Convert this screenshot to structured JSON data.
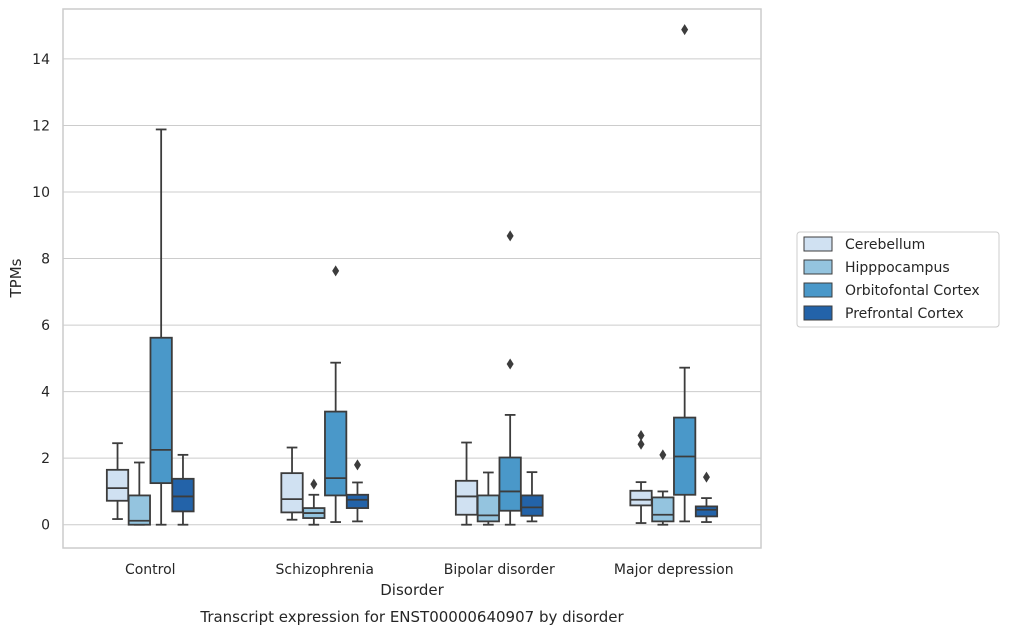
{
  "caption": "Transcript expression for ENST00000640907 by disorder",
  "chart_data": {
    "type": "boxplot",
    "title": "",
    "xlabel": "Disorder",
    "ylabel": "TPMs",
    "ylim": [
      -0.7,
      15.5
    ],
    "yticks": [
      0,
      2,
      4,
      6,
      8,
      10,
      12,
      14
    ],
    "grid": "horizontal",
    "legend_position": "right",
    "categories": [
      "Control",
      "Schizophrenia",
      "Bipolar disorder",
      "Major depression"
    ],
    "series": [
      {
        "name": "Cerebellum",
        "color": "#d0e1f2",
        "boxes": [
          {
            "whislo": 0.17,
            "q1": 0.72,
            "med": 1.1,
            "q3": 1.65,
            "whishi": 2.45,
            "fliers": []
          },
          {
            "whislo": 0.15,
            "q1": 0.37,
            "med": 0.77,
            "q3": 1.55,
            "whishi": 2.32,
            "fliers": []
          },
          {
            "whislo": 0.0,
            "q1": 0.3,
            "med": 0.85,
            "q3": 1.32,
            "whishi": 2.47,
            "fliers": []
          },
          {
            "whislo": 0.05,
            "q1": 0.58,
            "med": 0.75,
            "q3": 1.02,
            "whishi": 1.28,
            "fliers": [
              2.42,
              2.68
            ]
          }
        ]
      },
      {
        "name": "Hipppocampus",
        "color": "#94c4df",
        "boxes": [
          {
            "whislo": 0.0,
            "q1": 0.0,
            "med": 0.12,
            "q3": 0.88,
            "whishi": 1.87,
            "fliers": []
          },
          {
            "whislo": 0.0,
            "q1": 0.2,
            "med": 0.35,
            "q3": 0.5,
            "whishi": 0.9,
            "fliers": [
              1.22
            ]
          },
          {
            "whislo": 0.0,
            "q1": 0.1,
            "med": 0.28,
            "q3": 0.88,
            "whishi": 1.57,
            "fliers": []
          },
          {
            "whislo": 0.0,
            "q1": 0.1,
            "med": 0.3,
            "q3": 0.82,
            "whishi": 1.0,
            "fliers": [
              2.1
            ]
          }
        ]
      },
      {
        "name": "Orbitofontal Cortex",
        "color": "#4a98c9",
        "boxes": [
          {
            "whislo": 0.0,
            "q1": 1.25,
            "med": 2.25,
            "q3": 5.62,
            "whishi": 11.88,
            "fliers": []
          },
          {
            "whislo": 0.08,
            "q1": 0.88,
            "med": 1.4,
            "q3": 3.4,
            "whishi": 4.87,
            "fliers": [
              7.63
            ]
          },
          {
            "whislo": 0.0,
            "q1": 0.42,
            "med": 1.0,
            "q3": 2.02,
            "whishi": 3.3,
            "fliers": [
              4.83,
              8.68
            ]
          },
          {
            "whislo": 0.1,
            "q1": 0.9,
            "med": 2.05,
            "q3": 3.22,
            "whishi": 4.72,
            "fliers": [
              14.88
            ]
          }
        ]
      },
      {
        "name": "Prefrontal Cortex",
        "color": "#2363a9",
        "boxes": [
          {
            "whislo": 0.0,
            "q1": 0.4,
            "med": 0.85,
            "q3": 1.38,
            "whishi": 2.1,
            "fliers": []
          },
          {
            "whislo": 0.1,
            "q1": 0.5,
            "med": 0.75,
            "q3": 0.9,
            "whishi": 1.27,
            "fliers": [
              1.8
            ]
          },
          {
            "whislo": 0.1,
            "q1": 0.27,
            "med": 0.52,
            "q3": 0.88,
            "whishi": 1.58,
            "fliers": []
          },
          {
            "whislo": 0.08,
            "q1": 0.25,
            "med": 0.45,
            "q3": 0.55,
            "whishi": 0.8,
            "fliers": [
              1.43
            ]
          }
        ]
      }
    ]
  }
}
